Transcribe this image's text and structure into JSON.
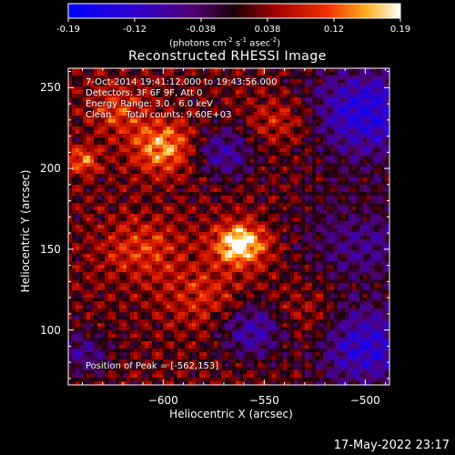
{
  "colorbar": {
    "tick_labels": [
      "-0.19",
      "-0.12",
      "-0.038",
      "0.038",
      "0.12",
      "0.19"
    ],
    "units_prefix": "(photons cm",
    "units_sup1": "-2",
    "units_mid1": " s",
    "units_sup2": "-1",
    "units_mid2": " asec",
    "units_sup3": "-2",
    "units_suffix": ")",
    "range": [
      -0.19,
      0.19
    ]
  },
  "title": "Reconstructed RHESSI Image",
  "info": {
    "time_range": "7-Oct-2014 19:41:12.000 to 19:43:56.000",
    "detectors": "Detectors: 3F 6F 9F, Att 0",
    "energy": "Energy Range: 3.0 - 6.0 keV",
    "algorithm": "Clean     Total counts: 9.60E+03"
  },
  "peak": "Position of Peak = [-562,153]",
  "chart_data": {
    "type": "heatmap",
    "title": "Reconstructed RHESSI Image",
    "xlabel": "Heliocentric X (arcsec)",
    "ylabel": "Heliocentric Y (arcsec)",
    "xlim": [
      -647,
      -488
    ],
    "ylim": [
      66,
      262
    ],
    "x_ticks": [
      -600,
      -550,
      -500
    ],
    "x_tick_labels": [
      "−600",
      "−550",
      "−500"
    ],
    "y_ticks": [
      100,
      150,
      200,
      250
    ],
    "y_tick_labels": [
      "100",
      "150",
      "200",
      "250"
    ],
    "value_range": [
      -0.19,
      0.19
    ],
    "peak_position": [
      -562,
      153
    ],
    "colormap": "red-temperature",
    "sources": [
      {
        "x": -562,
        "y": 153,
        "sigma": 9,
        "amp": 0.19
      },
      {
        "x": -600,
        "y": 213,
        "sigma": 11,
        "amp": 0.13
      },
      {
        "x": -622,
        "y": 236,
        "sigma": 10,
        "amp": 0.08
      },
      {
        "x": -640,
        "y": 205,
        "sigma": 6,
        "amp": 0.1
      },
      {
        "x": -610,
        "y": 150,
        "sigma": 14,
        "amp": 0.07
      },
      {
        "x": -580,
        "y": 120,
        "sigma": 14,
        "amp": 0.06
      },
      {
        "x": -530,
        "y": 105,
        "sigma": 14,
        "amp": 0.05
      },
      {
        "x": -540,
        "y": 230,
        "sigma": 12,
        "amp": 0.06
      },
      {
        "x": -500,
        "y": 170,
        "sigma": 12,
        "amp": 0.04
      }
    ],
    "negative_regions": [
      {
        "x": -570,
        "y": 210,
        "sigma": 11,
        "amp": -0.1
      },
      {
        "x": -500,
        "y": 235,
        "sigma": 20,
        "amp": -0.15
      },
      {
        "x": -500,
        "y": 160,
        "sigma": 20,
        "amp": -0.1
      },
      {
        "x": -500,
        "y": 90,
        "sigma": 18,
        "amp": -0.14
      },
      {
        "x": -555,
        "y": 100,
        "sigma": 12,
        "amp": -0.12
      },
      {
        "x": -640,
        "y": 85,
        "sigma": 10,
        "amp": -0.08
      }
    ]
  },
  "timestamp": "17-May-2022 23:17"
}
